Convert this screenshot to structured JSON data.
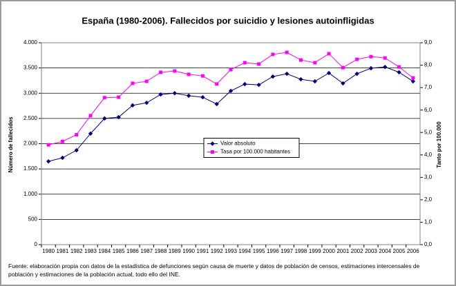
{
  "chart_data": {
    "type": "line",
    "title": "España (1980-2006). Fallecidos por suicidio y lesiones autoinfligidas",
    "y_label": "Número de fallecidos",
    "y2_label": "Tanto por 100.000",
    "note": "Fuente: elaboración propia con datos de la estadística de defunciones según causa de muerte y datos de población de censos, estimaciones intercensales de población y estimaciones de la población actual, todo ello del INE.",
    "categories": [
      "1980",
      "1981",
      "1982",
      "1983",
      "1984",
      "1985",
      "1986",
      "1987",
      "1988",
      "1989",
      "1990",
      "1991",
      "1992",
      "1993",
      "1994",
      "1995",
      "1996",
      "1997",
      "1998",
      "1999",
      "2000",
      "2001",
      "2002",
      "2003",
      "2004",
      "2005",
      "2006"
    ],
    "series": [
      {
        "name": "Valor absoluto",
        "color": "#000080",
        "marker": "diamond",
        "values": [
          1650,
          1720,
          1870,
          2200,
          2500,
          2525,
          2760,
          2810,
          2975,
          3000,
          2950,
          2920,
          2785,
          3045,
          3180,
          3165,
          3330,
          3385,
          3275,
          3235,
          3400,
          3195,
          3385,
          3495,
          3520,
          3415,
          3235
        ]
      },
      {
        "name": "Tasa por 100.000 habitantes",
        "color": "#ff00ff",
        "marker": "square",
        "axis": "y2",
        "values": [
          4.45,
          4.6,
          4.9,
          5.75,
          6.55,
          6.57,
          7.19,
          7.28,
          7.68,
          7.74,
          7.59,
          7.52,
          7.16,
          7.8,
          8.11,
          8.05,
          8.48,
          8.57,
          8.23,
          8.11,
          8.51,
          7.89,
          8.26,
          8.38,
          8.32,
          7.92,
          7.43
        ]
      }
    ],
    "ylim": [
      0,
      4000
    ],
    "yticks": [
      0,
      {
        "value": 500,
        "label": "500"
      },
      {
        "value": 1000,
        "label": "1.000"
      },
      {
        "value": 1500,
        "label": "1.500"
      },
      {
        "value": 2000,
        "label": "2.000"
      },
      {
        "value": 2500,
        "label": "2.500"
      },
      {
        "value": 3000,
        "label": "3.000"
      },
      {
        "value": 3500,
        "label": "3.500"
      },
      {
        "value": 4000,
        "label": "4.000"
      }
    ],
    "y2lim": [
      0,
      9
    ],
    "y2ticks": [
      {
        "value": 0,
        "label": "0,0"
      },
      {
        "value": 1,
        "label": "1,0"
      },
      {
        "value": 2,
        "label": "2,0"
      },
      {
        "value": 3,
        "label": "3,0"
      },
      {
        "value": 4,
        "label": "4,0"
      },
      {
        "value": 5,
        "label": "5,0"
      },
      {
        "value": 6,
        "label": "6,0"
      },
      {
        "value": 7,
        "label": "7,0"
      },
      {
        "value": 8,
        "label": "8,0"
      },
      {
        "value": 9,
        "label": "9,0"
      }
    ],
    "grid": true,
    "legend": "center"
  }
}
